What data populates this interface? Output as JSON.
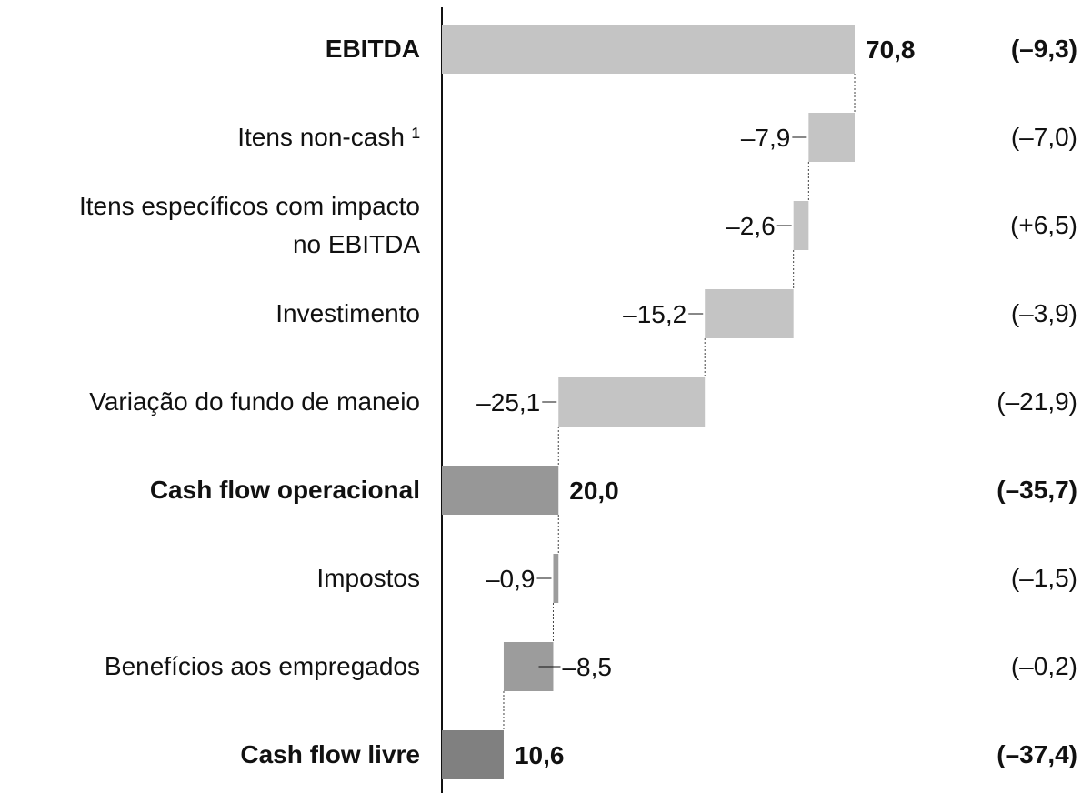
{
  "chart_data": {
    "type": "waterfall",
    "categories": [
      "EBITDA",
      "Itens non-cash ¹",
      "Itens específicos com impacto\nno EBITDA",
      "Investimento",
      "Variação do fundo de maneio",
      "Cash flow operacional",
      "Impostos",
      "Benefícios aos empregados",
      "Cash flow livre"
    ],
    "measures": [
      "total",
      "relative",
      "relative",
      "relative",
      "relative",
      "total",
      "relative",
      "relative",
      "total"
    ],
    "values": [
      70.8,
      -7.9,
      -2.6,
      -15.2,
      -25.1,
      20.0,
      -0.9,
      -8.5,
      10.6
    ],
    "value_labels": [
      "70,8",
      "–7,9",
      "–2,6",
      "–15,2",
      "–25,1",
      "20,0",
      "–0,9",
      "–8,5",
      "10,6"
    ],
    "comparison": [
      "(–9,3)",
      "(–7,0)",
      "(+6,5)",
      "(–3,9)",
      "(–21,9)",
      "(–35,7)",
      "(–1,5)",
      "(–0,2)",
      "(–37,4)"
    ],
    "colors": [
      "#c4c4c4",
      "#c4c4c4",
      "#c4c4c4",
      "#c4c4c4",
      "#c4c4c4",
      "#979797",
      "#9c9c9c",
      "#9c9c9c",
      "#808080"
    ],
    "xlim": [
      0,
      80
    ]
  }
}
